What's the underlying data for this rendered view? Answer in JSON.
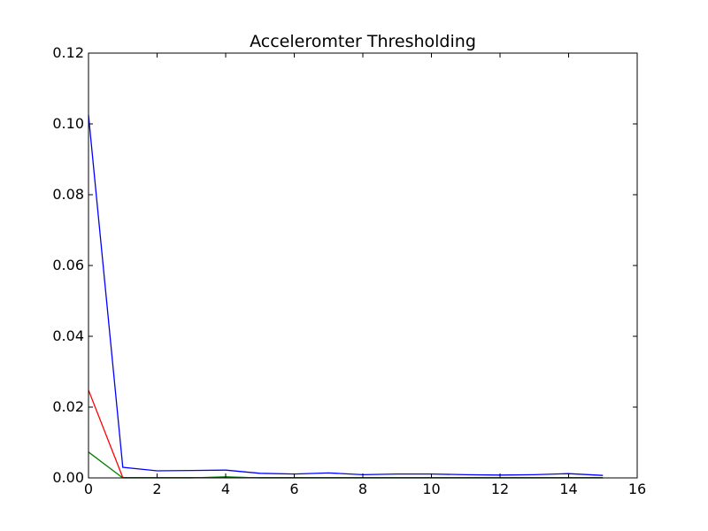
{
  "chart_data": {
    "type": "line",
    "title": "Acceleromter Thresholding",
    "xlabel": "",
    "ylabel": "",
    "xlim": [
      0,
      16
    ],
    "ylim": [
      0,
      0.12
    ],
    "x_ticks": [
      0,
      2,
      4,
      6,
      8,
      10,
      12,
      14,
      16
    ],
    "x_tick_labels": [
      "0",
      "2",
      "4",
      "6",
      "8",
      "10",
      "12",
      "14",
      "16"
    ],
    "y_ticks": [
      0,
      0.02,
      0.04,
      0.06,
      0.08,
      0.1,
      0.12
    ],
    "y_tick_labels": [
      "0.00",
      "0.02",
      "0.04",
      "0.06",
      "0.08",
      "0.10",
      "0.12"
    ],
    "grid": false,
    "legend": "none",
    "x": [
      0,
      1,
      2,
      3,
      4,
      5,
      6,
      7,
      8,
      9,
      10,
      11,
      12,
      13,
      14,
      15
    ],
    "series": [
      {
        "color": "#0000ff",
        "values": [
          0.1025,
          0.003,
          0.002,
          0.0021,
          0.0022,
          0.0013,
          0.0011,
          0.0014,
          0.0009,
          0.0011,
          0.0011,
          0.0009,
          0.0008,
          0.0009,
          0.0012,
          0.0007
        ]
      },
      {
        "color": "#ff0000",
        "values": [
          0.0248,
          0.0001,
          0.0001,
          0.0001,
          0.0001,
          0.0001,
          0.0001,
          0.0001,
          0.0001,
          0.0001,
          0.0001,
          0.0001,
          0.0001,
          0.0001,
          0.0001,
          0.0001
        ]
      },
      {
        "color": "#008000",
        "values": [
          0.0073,
          0.0,
          0.0,
          0.0,
          0.0003,
          0.0,
          0.0,
          0.0,
          0.0,
          0.0,
          0.0,
          0.0,
          0.0,
          0.0,
          0.0,
          0.0
        ]
      }
    ]
  }
}
